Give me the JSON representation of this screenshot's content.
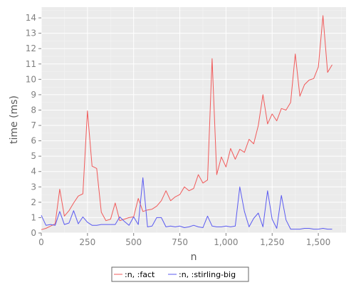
{
  "chart_data": {
    "type": "line",
    "xlabel": "n",
    "ylabel": "time (ms)",
    "xlim": [
      0,
      1650
    ],
    "ylim": [
      0,
      14.7
    ],
    "x_ticks": [
      0,
      250,
      500,
      750,
      1000,
      1250,
      1500
    ],
    "x_tick_labels": [
      "0",
      "250",
      "500",
      "750",
      "1,000",
      "1,250",
      "1,500"
    ],
    "y_ticks": [
      0,
      1,
      2,
      3,
      4,
      5,
      6,
      7,
      8,
      9,
      10,
      11,
      12,
      13,
      14
    ],
    "y_tick_labels": [
      "0",
      "1",
      "2",
      "3",
      "4",
      "5",
      "6",
      "7",
      "8",
      "9",
      "10",
      "11",
      "12",
      "13",
      "14"
    ],
    "grid": true,
    "legend_position": "bottom-center",
    "series": [
      {
        "name": ":n, :fact",
        "color": "#f15a5a",
        "x": [
          0,
          25,
          50,
          75,
          100,
          125,
          150,
          175,
          200,
          225,
          250,
          275,
          300,
          325,
          350,
          375,
          400,
          425,
          450,
          475,
          500,
          525,
          550,
          575,
          600,
          625,
          650,
          675,
          700,
          725,
          750,
          775,
          800,
          825,
          850,
          875,
          900,
          925,
          950,
          975,
          1000,
          1025,
          1050,
          1075,
          1100,
          1125,
          1150,
          1175,
          1200,
          1225,
          1250,
          1275,
          1300,
          1325,
          1350,
          1375,
          1400,
          1425,
          1450,
          1475,
          1500,
          1525,
          1550,
          1575
        ],
        "y": [
          0.22,
          0.3,
          0.45,
          0.6,
          2.85,
          1.1,
          1.45,
          1.95,
          2.4,
          2.55,
          7.95,
          4.35,
          4.2,
          1.35,
          0.8,
          0.9,
          1.95,
          0.8,
          0.9,
          1.0,
          1.05,
          2.25,
          1.4,
          1.5,
          1.55,
          1.75,
          2.1,
          2.75,
          2.1,
          2.35,
          2.5,
          3.0,
          2.75,
          2.9,
          3.8,
          3.25,
          3.45,
          11.35,
          3.8,
          4.95,
          4.3,
          5.5,
          4.8,
          5.45,
          5.25,
          6.1,
          5.8,
          7.0,
          9.0,
          7.1,
          7.75,
          7.3,
          8.1,
          8.0,
          8.5,
          11.65,
          8.9,
          9.65,
          9.95,
          10.05,
          10.8,
          14.15,
          10.45,
          10.95
        ]
      },
      {
        "name": ":n, :stirling-big",
        "color": "#5a5af1",
        "x": [
          0,
          25,
          50,
          75,
          100,
          125,
          150,
          175,
          200,
          225,
          250,
          275,
          300,
          325,
          350,
          375,
          400,
          425,
          450,
          475,
          500,
          525,
          550,
          575,
          600,
          625,
          650,
          675,
          700,
          725,
          750,
          775,
          800,
          825,
          850,
          875,
          900,
          925,
          950,
          975,
          1000,
          1025,
          1050,
          1075,
          1100,
          1125,
          1150,
          1175,
          1200,
          1225,
          1250,
          1275,
          1300,
          1325,
          1350,
          1375,
          1400,
          1425,
          1450,
          1475,
          1500,
          1525,
          1550,
          1575
        ],
        "y": [
          1.15,
          0.5,
          0.55,
          0.5,
          1.4,
          0.55,
          0.65,
          1.45,
          0.6,
          1.05,
          0.7,
          0.5,
          0.5,
          0.55,
          0.55,
          0.55,
          0.55,
          1.05,
          0.75,
          0.5,
          1.05,
          0.55,
          3.6,
          0.4,
          0.45,
          1.0,
          1.0,
          0.4,
          0.45,
          0.4,
          0.45,
          0.35,
          0.4,
          0.5,
          0.4,
          0.35,
          1.1,
          0.45,
          0.4,
          0.4,
          0.45,
          0.4,
          0.45,
          3.0,
          1.4,
          0.4,
          0.95,
          1.3,
          0.4,
          2.75,
          0.9,
          0.3,
          2.45,
          0.85,
          0.25,
          0.25,
          0.25,
          0.3,
          0.3,
          0.25,
          0.25,
          0.3,
          0.25,
          0.25
        ]
      }
    ]
  }
}
